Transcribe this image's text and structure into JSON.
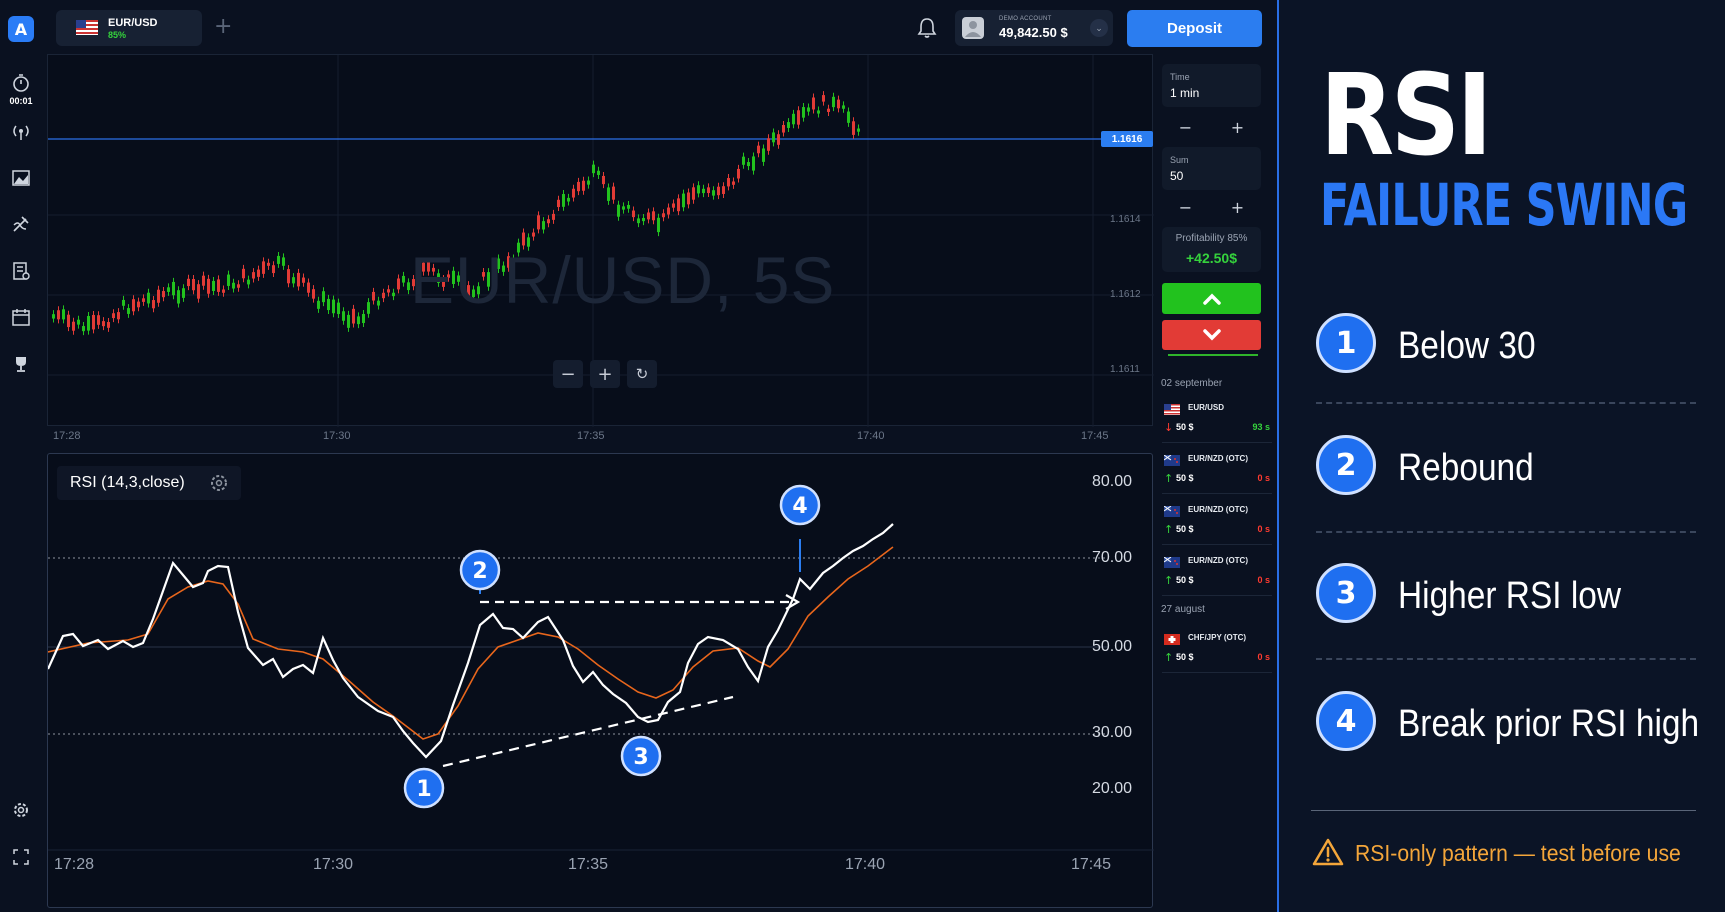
{
  "topbar": {
    "logo_letter": "A",
    "pair": {
      "name": "EUR/USD",
      "payout": "85%"
    },
    "add_tab": "+",
    "account": {
      "label": "DEMO ACCOUNT",
      "balance": "49,842.50 $"
    },
    "deposit_label": "Deposit"
  },
  "sidebar": {
    "timer": "00:01"
  },
  "price_chart": {
    "watermark": "EUR/USD, 5S",
    "current_price": "1.1616",
    "price_ticks": [
      "1.1614",
      "1.1612",
      "1.1611"
    ],
    "time_ticks": [
      "17:28",
      "17:30",
      "17:35",
      "17:40",
      "17:45"
    ]
  },
  "rsi_chart": {
    "label": "RSI (14,3,close)",
    "y_ticks": [
      "80.00",
      "70.00",
      "50.00",
      "30.00",
      "20.00"
    ],
    "time_ticks": [
      "17:28",
      "17:30",
      "17:35",
      "17:40",
      "17:45"
    ],
    "markers": [
      "1",
      "2",
      "3",
      "4"
    ]
  },
  "trade_panel": {
    "time_label": "Time",
    "time_value": "1 min",
    "sum_label": "Sum",
    "sum_value": "50",
    "profit_label": "Profitability 85%",
    "profit_value": "+42.50$"
  },
  "trades": {
    "date1": "02 september",
    "date2": "27 august",
    "items": [
      {
        "pair": "EUR/USD",
        "amount": "50 $",
        "time": "93 s",
        "dir": "down"
      },
      {
        "pair": "EUR/NZD (OTC)",
        "amount": "50 $",
        "time": "0 s",
        "dir": "up"
      },
      {
        "pair": "EUR/NZD (OTC)",
        "amount": "50 $",
        "time": "0 s",
        "dir": "up"
      },
      {
        "pair": "EUR/NZD (OTC)",
        "amount": "50 $",
        "time": "0 s",
        "dir": "up"
      },
      {
        "pair": "CHF/JPY (OTC)",
        "amount": "50 $",
        "time": "0 s",
        "dir": "up"
      }
    ]
  },
  "info": {
    "title": "RSI",
    "subtitle": "FAILURE SWING",
    "steps": [
      {
        "num": "1",
        "text": "Below 30"
      },
      {
        "num": "2",
        "text": "Rebound"
      },
      {
        "num": "3",
        "text": "Higher RSI low"
      },
      {
        "num": "4",
        "text": "Break prior RSI high"
      }
    ],
    "warning": "RSI-only pattern — test before use"
  },
  "colors": {
    "accent": "#2b7df0",
    "up": "#22c21e",
    "down": "#e23b36",
    "rsi_signal": "#e8661c",
    "warning": "#f4a63a"
  }
}
